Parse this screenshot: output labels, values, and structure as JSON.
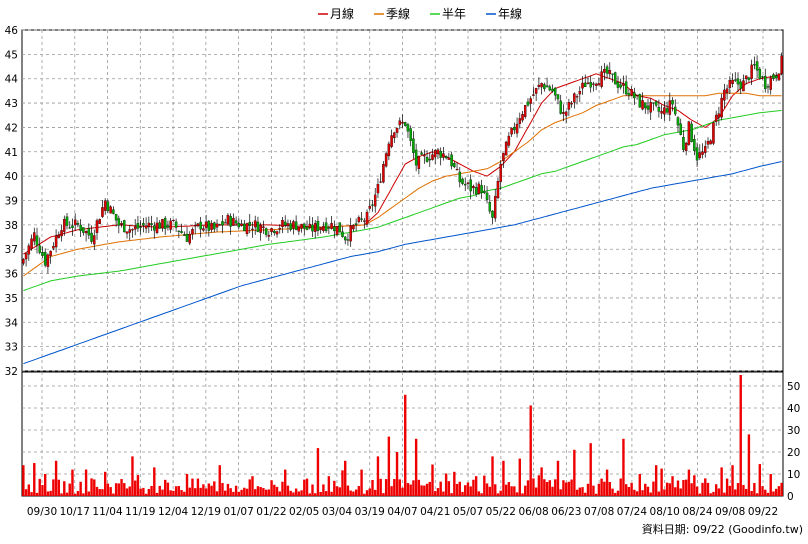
{
  "chart_data": {
    "type": "candlestick",
    "legend": [
      {
        "name": "月線",
        "color": "#cc0000"
      },
      {
        "name": "季線",
        "color": "#e07000"
      },
      {
        "name": "半年",
        "color": "#22cc22"
      },
      {
        "name": "年線",
        "color": "#0055cc"
      }
    ],
    "legend_position": "top-center",
    "grid": true,
    "price_axis": {
      "min": 32,
      "max": 46,
      "ticks": [
        32,
        33,
        34,
        35,
        36,
        37,
        38,
        39,
        40,
        41,
        42,
        43,
        44,
        45,
        46
      ],
      "side": "left"
    },
    "volume_axis": {
      "min": 0,
      "max": 50,
      "ticks": [
        0,
        10,
        20,
        30,
        40,
        50
      ],
      "side": "right"
    },
    "x_labels": [
      "09/30",
      "10/17",
      "11/04",
      "11/19",
      "12/04",
      "12/19",
      "01/07",
      "01/22",
      "02/05",
      "03/04",
      "03/19",
      "04/07",
      "04/21",
      "05/07",
      "05/22",
      "06/08",
      "06/23",
      "07/08",
      "07/24",
      "08/10",
      "08/24",
      "09/08",
      "09/22"
    ],
    "key_closes": [
      [
        0,
        36.6
      ],
      [
        4,
        37.6
      ],
      [
        8,
        36.5
      ],
      [
        14,
        38.0
      ],
      [
        20,
        38.0
      ],
      [
        25,
        37.5
      ],
      [
        30,
        39.0
      ],
      [
        35,
        38.0
      ],
      [
        40,
        37.8
      ],
      [
        45,
        38.0
      ],
      [
        50,
        38.0
      ],
      [
        55,
        38.0
      ],
      [
        60,
        37.5
      ],
      [
        65,
        38.0
      ],
      [
        70,
        37.8
      ],
      [
        75,
        38.2
      ],
      [
        80,
        38.0
      ],
      [
        85,
        38.0
      ],
      [
        90,
        37.8
      ],
      [
        95,
        38.0
      ],
      [
        100,
        38.0
      ],
      [
        105,
        37.8
      ],
      [
        110,
        38.0
      ],
      [
        113,
        38.0
      ],
      [
        116,
        37.8
      ],
      [
        118,
        37.5
      ],
      [
        122,
        38.0
      ],
      [
        126,
        38.3
      ],
      [
        130,
        39.5
      ],
      [
        134,
        41.5
      ],
      [
        136,
        42.0
      ],
      [
        140,
        42.2
      ],
      [
        144,
        40.5
      ],
      [
        148,
        40.8
      ],
      [
        152,
        41.0
      ],
      [
        156,
        40.8
      ],
      [
        160,
        39.8
      ],
      [
        164,
        39.5
      ],
      [
        168,
        39.5
      ],
      [
        172,
        38.2
      ],
      [
        175,
        40.5
      ],
      [
        178,
        41.5
      ],
      [
        182,
        42.5
      ],
      [
        186,
        43.2
      ],
      [
        190,
        43.8
      ],
      [
        194,
        43.5
      ],
      [
        198,
        42.5
      ],
      [
        202,
        43.2
      ],
      [
        206,
        43.8
      ],
      [
        210,
        44.0
      ],
      [
        214,
        44.2
      ],
      [
        218,
        43.8
      ],
      [
        222,
        43.5
      ],
      [
        226,
        43.0
      ],
      [
        230,
        42.8
      ],
      [
        234,
        42.6
      ],
      [
        238,
        43.0
      ],
      [
        242,
        41.2
      ],
      [
        244,
        42.0
      ],
      [
        247,
        40.8
      ],
      [
        250,
        41.0
      ],
      [
        253,
        42.0
      ],
      [
        257,
        43.5
      ],
      [
        260,
        43.8
      ],
      [
        264,
        43.8
      ],
      [
        268,
        44.5
      ],
      [
        272,
        43.8
      ],
      [
        276,
        44.2
      ],
      [
        278,
        44.7
      ]
    ],
    "ma_month": [
      [
        0,
        36.8
      ],
      [
        10,
        37.5
      ],
      [
        20,
        37.8
      ],
      [
        35,
        38.0
      ],
      [
        50,
        37.9
      ],
      [
        70,
        38.0
      ],
      [
        90,
        38.0
      ],
      [
        110,
        37.9
      ],
      [
        125,
        38.0
      ],
      [
        130,
        38.5
      ],
      [
        135,
        39.5
      ],
      [
        140,
        40.5
      ],
      [
        145,
        40.8
      ],
      [
        150,
        41.0
      ],
      [
        155,
        40.8
      ],
      [
        160,
        40.5
      ],
      [
        165,
        40.2
      ],
      [
        170,
        40.0
      ],
      [
        175,
        40.4
      ],
      [
        180,
        41.0
      ],
      [
        185,
        42.0
      ],
      [
        190,
        43.0
      ],
      [
        195,
        43.6
      ],
      [
        200,
        43.8
      ],
      [
        205,
        44.0
      ],
      [
        210,
        44.2
      ],
      [
        215,
        44.0
      ],
      [
        220,
        43.8
      ],
      [
        225,
        43.3
      ],
      [
        230,
        43.2
      ],
      [
        235,
        42.9
      ],
      [
        240,
        42.7
      ],
      [
        245,
        42.3
      ],
      [
        250,
        42.0
      ],
      [
        255,
        42.4
      ],
      [
        260,
        43.3
      ],
      [
        265,
        43.8
      ],
      [
        270,
        44.0
      ],
      [
        275,
        44.1
      ],
      [
        278,
        44.2
      ]
    ],
    "ma_quarter": [
      [
        0,
        35.9
      ],
      [
        5,
        36.3
      ],
      [
        10,
        36.7
      ],
      [
        20,
        37.0
      ],
      [
        35,
        37.3
      ],
      [
        50,
        37.5
      ],
      [
        70,
        37.7
      ],
      [
        90,
        37.8
      ],
      [
        110,
        37.9
      ],
      [
        125,
        38.0
      ],
      [
        130,
        38.3
      ],
      [
        135,
        38.7
      ],
      [
        140,
        39.1
      ],
      [
        145,
        39.5
      ],
      [
        150,
        39.8
      ],
      [
        155,
        40.0
      ],
      [
        160,
        40.1
      ],
      [
        165,
        40.2
      ],
      [
        170,
        40.3
      ],
      [
        175,
        40.6
      ],
      [
        180,
        41.0
      ],
      [
        185,
        41.4
      ],
      [
        190,
        41.9
      ],
      [
        195,
        42.2
      ],
      [
        200,
        42.4
      ],
      [
        205,
        42.6
      ],
      [
        210,
        42.9
      ],
      [
        215,
        43.1
      ],
      [
        220,
        43.3
      ],
      [
        225,
        43.3
      ],
      [
        230,
        43.3
      ],
      [
        235,
        43.3
      ],
      [
        240,
        43.3
      ],
      [
        245,
        43.3
      ],
      [
        250,
        43.3
      ],
      [
        255,
        43.4
      ],
      [
        260,
        43.4
      ],
      [
        265,
        43.4
      ],
      [
        270,
        43.3
      ],
      [
        278,
        43.3
      ]
    ],
    "ma_half": [
      [
        0,
        35.3
      ],
      [
        5,
        35.5
      ],
      [
        10,
        35.7
      ],
      [
        20,
        35.9
      ],
      [
        35,
        36.1
      ],
      [
        50,
        36.4
      ],
      [
        70,
        36.8
      ],
      [
        90,
        37.2
      ],
      [
        110,
        37.5
      ],
      [
        125,
        37.8
      ],
      [
        130,
        37.9
      ],
      [
        135,
        38.1
      ],
      [
        140,
        38.3
      ],
      [
        145,
        38.5
      ],
      [
        150,
        38.7
      ],
      [
        155,
        38.9
      ],
      [
        160,
        39.1
      ],
      [
        165,
        39.2
      ],
      [
        170,
        39.4
      ],
      [
        175,
        39.5
      ],
      [
        180,
        39.7
      ],
      [
        185,
        39.9
      ],
      [
        190,
        40.1
      ],
      [
        195,
        40.2
      ],
      [
        200,
        40.4
      ],
      [
        205,
        40.6
      ],
      [
        210,
        40.8
      ],
      [
        215,
        41.0
      ],
      [
        220,
        41.2
      ],
      [
        225,
        41.3
      ],
      [
        230,
        41.5
      ],
      [
        235,
        41.7
      ],
      [
        240,
        41.8
      ],
      [
        245,
        41.9
      ],
      [
        250,
        42.1
      ],
      [
        255,
        42.3
      ],
      [
        260,
        42.4
      ],
      [
        265,
        42.5
      ],
      [
        270,
        42.6
      ],
      [
        278,
        42.7
      ]
    ],
    "ma_year": [
      [
        0,
        32.3
      ],
      [
        10,
        32.7
      ],
      [
        20,
        33.1
      ],
      [
        30,
        33.5
      ],
      [
        40,
        33.9
      ],
      [
        50,
        34.3
      ],
      [
        60,
        34.7
      ],
      [
        70,
        35.1
      ],
      [
        80,
        35.5
      ],
      [
        90,
        35.8
      ],
      [
        100,
        36.1
      ],
      [
        110,
        36.4
      ],
      [
        120,
        36.7
      ],
      [
        130,
        36.9
      ],
      [
        140,
        37.2
      ],
      [
        150,
        37.4
      ],
      [
        160,
        37.6
      ],
      [
        170,
        37.8
      ],
      [
        180,
        38.0
      ],
      [
        190,
        38.3
      ],
      [
        200,
        38.6
      ],
      [
        210,
        38.9
      ],
      [
        220,
        39.2
      ],
      [
        230,
        39.5
      ],
      [
        240,
        39.7
      ],
      [
        250,
        39.9
      ],
      [
        260,
        40.1
      ],
      [
        270,
        40.4
      ],
      [
        278,
        40.6
      ]
    ],
    "volume_spikes": [
      [
        0,
        14
      ],
      [
        4,
        15
      ],
      [
        8,
        10
      ],
      [
        12,
        16
      ],
      [
        18,
        12
      ],
      [
        25,
        8
      ],
      [
        30,
        11
      ],
      [
        40,
        18
      ],
      [
        48,
        13
      ],
      [
        60,
        10
      ],
      [
        72,
        14
      ],
      [
        84,
        9
      ],
      [
        96,
        12
      ],
      [
        108,
        16
      ],
      [
        112,
        9
      ],
      [
        118,
        16
      ],
      [
        124,
        12
      ],
      [
        130,
        18
      ],
      [
        134,
        27
      ],
      [
        137,
        20
      ],
      [
        140,
        46
      ],
      [
        144,
        26
      ],
      [
        150,
        13
      ],
      [
        158,
        11
      ],
      [
        166,
        9
      ],
      [
        172,
        18
      ],
      [
        176,
        16
      ],
      [
        182,
        17
      ],
      [
        186,
        38
      ],
      [
        190,
        13
      ],
      [
        196,
        16
      ],
      [
        202,
        21
      ],
      [
        208,
        24
      ],
      [
        214,
        12
      ],
      [
        220,
        26
      ],
      [
        226,
        10
      ],
      [
        232,
        14
      ],
      [
        238,
        9
      ],
      [
        244,
        12
      ],
      [
        250,
        8
      ],
      [
        256,
        13
      ],
      [
        260,
        14
      ],
      [
        263,
        55
      ],
      [
        266,
        28
      ],
      [
        270,
        13
      ],
      [
        274,
        10
      ],
      [
        278,
        6
      ]
    ],
    "total_bars": 279,
    "footer": "資料日期: 09/22  (Goodinfo.tw)"
  }
}
